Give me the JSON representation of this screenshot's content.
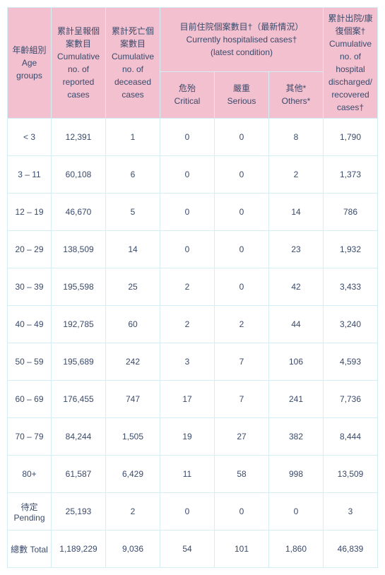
{
  "type": "table",
  "colors": {
    "header_bg": "#f2c0cf",
    "cell_bg": "#ffffff",
    "border": "#d4eef5",
    "text": "#3a4a6b"
  },
  "typography": {
    "font_family": "Arial, Microsoft JhengHei, sans-serif",
    "font_size": 12
  },
  "columns": {
    "age": {
      "zh": "年齡組別",
      "en": "Age groups"
    },
    "reported": {
      "zh": "累計呈報個案數目",
      "en": "Cumulative no. of reported cases"
    },
    "deceased": {
      "zh": "累計死亡個案數目",
      "en": "Cumulative no. of deceased cases"
    },
    "hospitalised": {
      "zh": "目前住院個案數目†（最新情況）",
      "en1": "Currently hospitalised cases†",
      "en2": "(latest condition)"
    },
    "critical": {
      "zh": "危殆",
      "en": "Critical"
    },
    "serious": {
      "zh": "嚴重",
      "en": "Serious"
    },
    "others": {
      "zh": "其他*",
      "en": "Others*"
    },
    "recovered": {
      "zh": "累計出院/康復個案†",
      "en": "Cumulative no. of hospital discharged/ recovered cases†"
    }
  },
  "rows": [
    {
      "age": "< 3",
      "reported": "12,391",
      "deceased": "1",
      "critical": "0",
      "serious": "0",
      "others": "8",
      "recovered": "1,790"
    },
    {
      "age": "3 – 11",
      "reported": "60,108",
      "deceased": "6",
      "critical": "0",
      "serious": "0",
      "others": "2",
      "recovered": "1,373"
    },
    {
      "age": "12 – 19",
      "reported": "46,670",
      "deceased": "5",
      "critical": "0",
      "serious": "0",
      "others": "14",
      "recovered": "786"
    },
    {
      "age": "20 – 29",
      "reported": "138,509",
      "deceased": "14",
      "critical": "0",
      "serious": "0",
      "others": "23",
      "recovered": "1,932"
    },
    {
      "age": "30 – 39",
      "reported": "195,598",
      "deceased": "25",
      "critical": "2",
      "serious": "0",
      "others": "42",
      "recovered": "3,433"
    },
    {
      "age": "40 – 49",
      "reported": "192,785",
      "deceased": "60",
      "critical": "2",
      "serious": "2",
      "others": "44",
      "recovered": "3,240"
    },
    {
      "age": "50 – 59",
      "reported": "195,689",
      "deceased": "242",
      "critical": "3",
      "serious": "7",
      "others": "106",
      "recovered": "4,593"
    },
    {
      "age": "60 – 69",
      "reported": "176,455",
      "deceased": "747",
      "critical": "17",
      "serious": "7",
      "others": "241",
      "recovered": "7,736"
    },
    {
      "age": "70 – 79",
      "reported": "84,244",
      "deceased": "1,505",
      "critical": "19",
      "serious": "27",
      "others": "382",
      "recovered": "8,444"
    },
    {
      "age": "80+",
      "reported": "61,587",
      "deceased": "6,429",
      "critical": "11",
      "serious": "58",
      "others": "998",
      "recovered": "13,509"
    },
    {
      "age": "待定 Pending",
      "reported": "25,193",
      "deceased": "2",
      "critical": "0",
      "serious": "0",
      "others": "0",
      "recovered": "3"
    },
    {
      "age": "總數 Total",
      "reported": "1,189,229",
      "deceased": "9,036",
      "critical": "54",
      "serious": "101",
      "others": "1,860",
      "recovered": "46,839"
    }
  ]
}
